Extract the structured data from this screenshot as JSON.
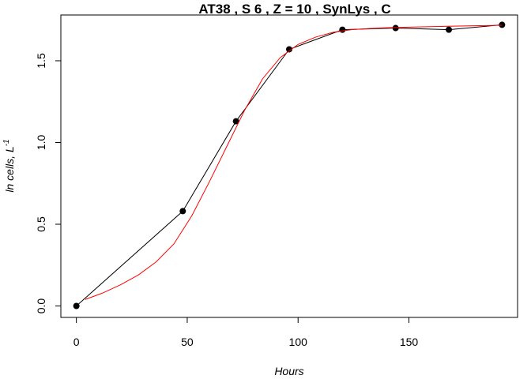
{
  "chart_data": {
    "type": "line",
    "title": "AT38 , S 6 , Z = 10 , SynLys , C",
    "xlabel": "Hours",
    "ylabel": "ln cells, L",
    "ylabel_superscript": "-1",
    "xlim": [
      -7,
      199
    ],
    "ylim": [
      -0.07,
      1.78
    ],
    "x_ticks": [
      0,
      50,
      100,
      150
    ],
    "x_tick_labels": [
      "0",
      "50",
      "100",
      "150"
    ],
    "y_ticks": [
      0.0,
      0.5,
      1.0,
      1.5
    ],
    "y_tick_labels": [
      "0.0",
      "0.5",
      "1.0",
      "1.5"
    ],
    "grid": false,
    "series": [
      {
        "color": "#000000",
        "style": "points-with-line",
        "x": [
          0,
          48,
          72,
          96,
          120,
          144,
          168,
          192
        ],
        "y": [
          0.0,
          0.58,
          1.13,
          1.57,
          1.69,
          1.7,
          1.69,
          1.72
        ]
      },
      {
        "color": "#ff0000",
        "style": "line",
        "x": [
          4,
          12,
          20,
          28,
          36,
          44,
          52,
          60,
          68,
          76,
          84,
          92,
          100,
          108,
          116,
          124,
          132,
          140,
          150,
          160,
          170,
          180,
          192
        ],
        "y": [
          0.04,
          0.08,
          0.13,
          0.19,
          0.27,
          0.38,
          0.55,
          0.76,
          0.98,
          1.2,
          1.39,
          1.52,
          1.6,
          1.645,
          1.675,
          1.69,
          1.697,
          1.702,
          1.706,
          1.709,
          1.712,
          1.714,
          1.717
        ]
      }
    ]
  }
}
